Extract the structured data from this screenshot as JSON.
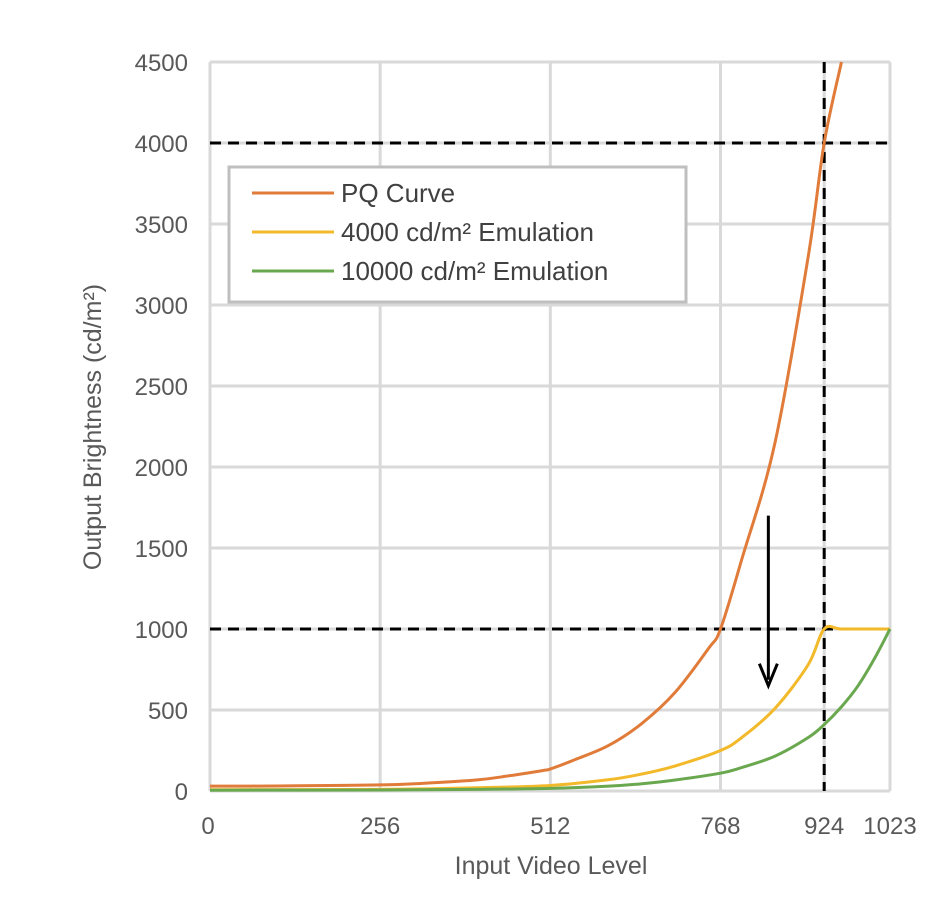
{
  "chart_data": {
    "type": "line",
    "xlabel": "Input Video Level",
    "ylabel": "Output Brightness (cd/m²)",
    "xlim": [
      0,
      1023
    ],
    "ylim": [
      0,
      4500
    ],
    "x_ticks": [
      0,
      256,
      512,
      768,
      924,
      1023
    ],
    "y_ticks": [
      0,
      500,
      1000,
      1500,
      2000,
      2500,
      3000,
      3500,
      4000,
      4500
    ],
    "grid": true,
    "legend_position": "top-left",
    "reference_lines": [
      {
        "orientation": "horizontal",
        "value": 4000,
        "style": "dashed",
        "color": "#000000"
      },
      {
        "orientation": "horizontal",
        "value": 1000,
        "style": "dashed",
        "color": "#000000"
      },
      {
        "orientation": "vertical",
        "value": 924,
        "style": "dashed",
        "color": "#000000"
      }
    ],
    "annotation_arrow": {
      "x": 840,
      "y_from": 1700,
      "y_to": 650,
      "color": "#000000"
    },
    "series": [
      {
        "name": "PQ Curve",
        "color": "#e07b39",
        "x": [
          0,
          100,
          200,
          256,
          300,
          400,
          450,
          500,
          512,
          550,
          600,
          650,
          700,
          750,
          768,
          800,
          850,
          900,
          924,
          950
        ],
        "y": [
          30,
          31,
          35,
          38,
          43,
          68,
          94,
          126,
          136,
          195,
          282,
          418,
          610,
          880,
          1000,
          1430,
          2150,
          3300,
          4000,
          4500
        ]
      },
      {
        "name": "4000 cd/m² Emulation",
        "color": "#f2b92a",
        "x": [
          0,
          256,
          400,
          512,
          600,
          650,
          700,
          768,
          800,
          850,
          900,
          924,
          950,
          1000,
          1023
        ],
        "y": [
          8,
          10,
          20,
          34,
          70,
          105,
          155,
          250,
          330,
          510,
          780,
          1000,
          1000,
          1000,
          1000
        ]
      },
      {
        "name": "10000 cd/m² Emulation",
        "color": "#6aa84f",
        "x": [
          0,
          256,
          400,
          512,
          600,
          650,
          700,
          768,
          800,
          850,
          900,
          924,
          950,
          975,
          1000,
          1023
        ],
        "y": [
          5,
          6,
          10,
          16,
          30,
          45,
          68,
          110,
          145,
          215,
          330,
          410,
          520,
          650,
          820,
          1000
        ]
      }
    ]
  }
}
